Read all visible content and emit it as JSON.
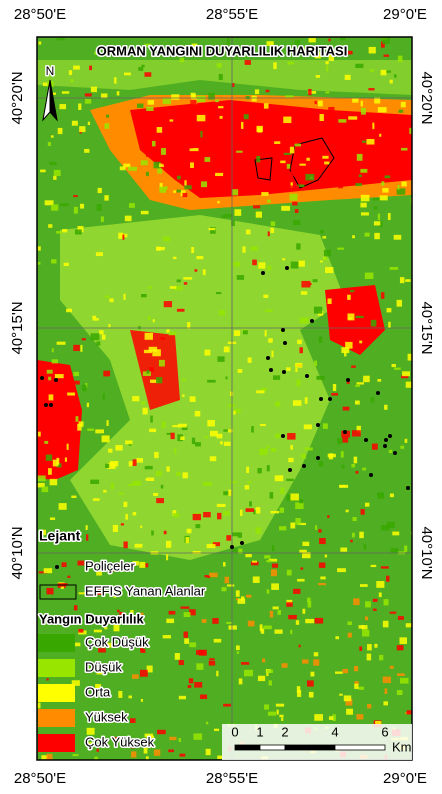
{
  "map": {
    "title": "ORMAN YANGINI DUYARLILIK HARITASI",
    "north": "N",
    "lon_labels": [
      "28°50'E",
      "28°55'E",
      "29°0'E"
    ],
    "lat_labels": [
      "40°20'N",
      "40°15'N",
      "40°10'N"
    ],
    "legend": {
      "title": "Lejant",
      "symbols": [
        "Poliçeler",
        "EFFIS Yanan Alanlar"
      ],
      "classes_title": "Yangın Duyarlılık",
      "classes": [
        {
          "label": "Çok Düşük",
          "color": "#38a800"
        },
        {
          "label": "Düşük",
          "color": "#98e600"
        },
        {
          "label": "Orta",
          "color": "#ffff00"
        },
        {
          "label": "Yüksek",
          "color": "#ff8c00"
        },
        {
          "label": "Çok Yüksek",
          "color": "#ff0000"
        }
      ]
    },
    "scale": {
      "labels": [
        "0",
        "1",
        "2",
        "4",
        "6"
      ],
      "unit": "Km"
    }
  }
}
